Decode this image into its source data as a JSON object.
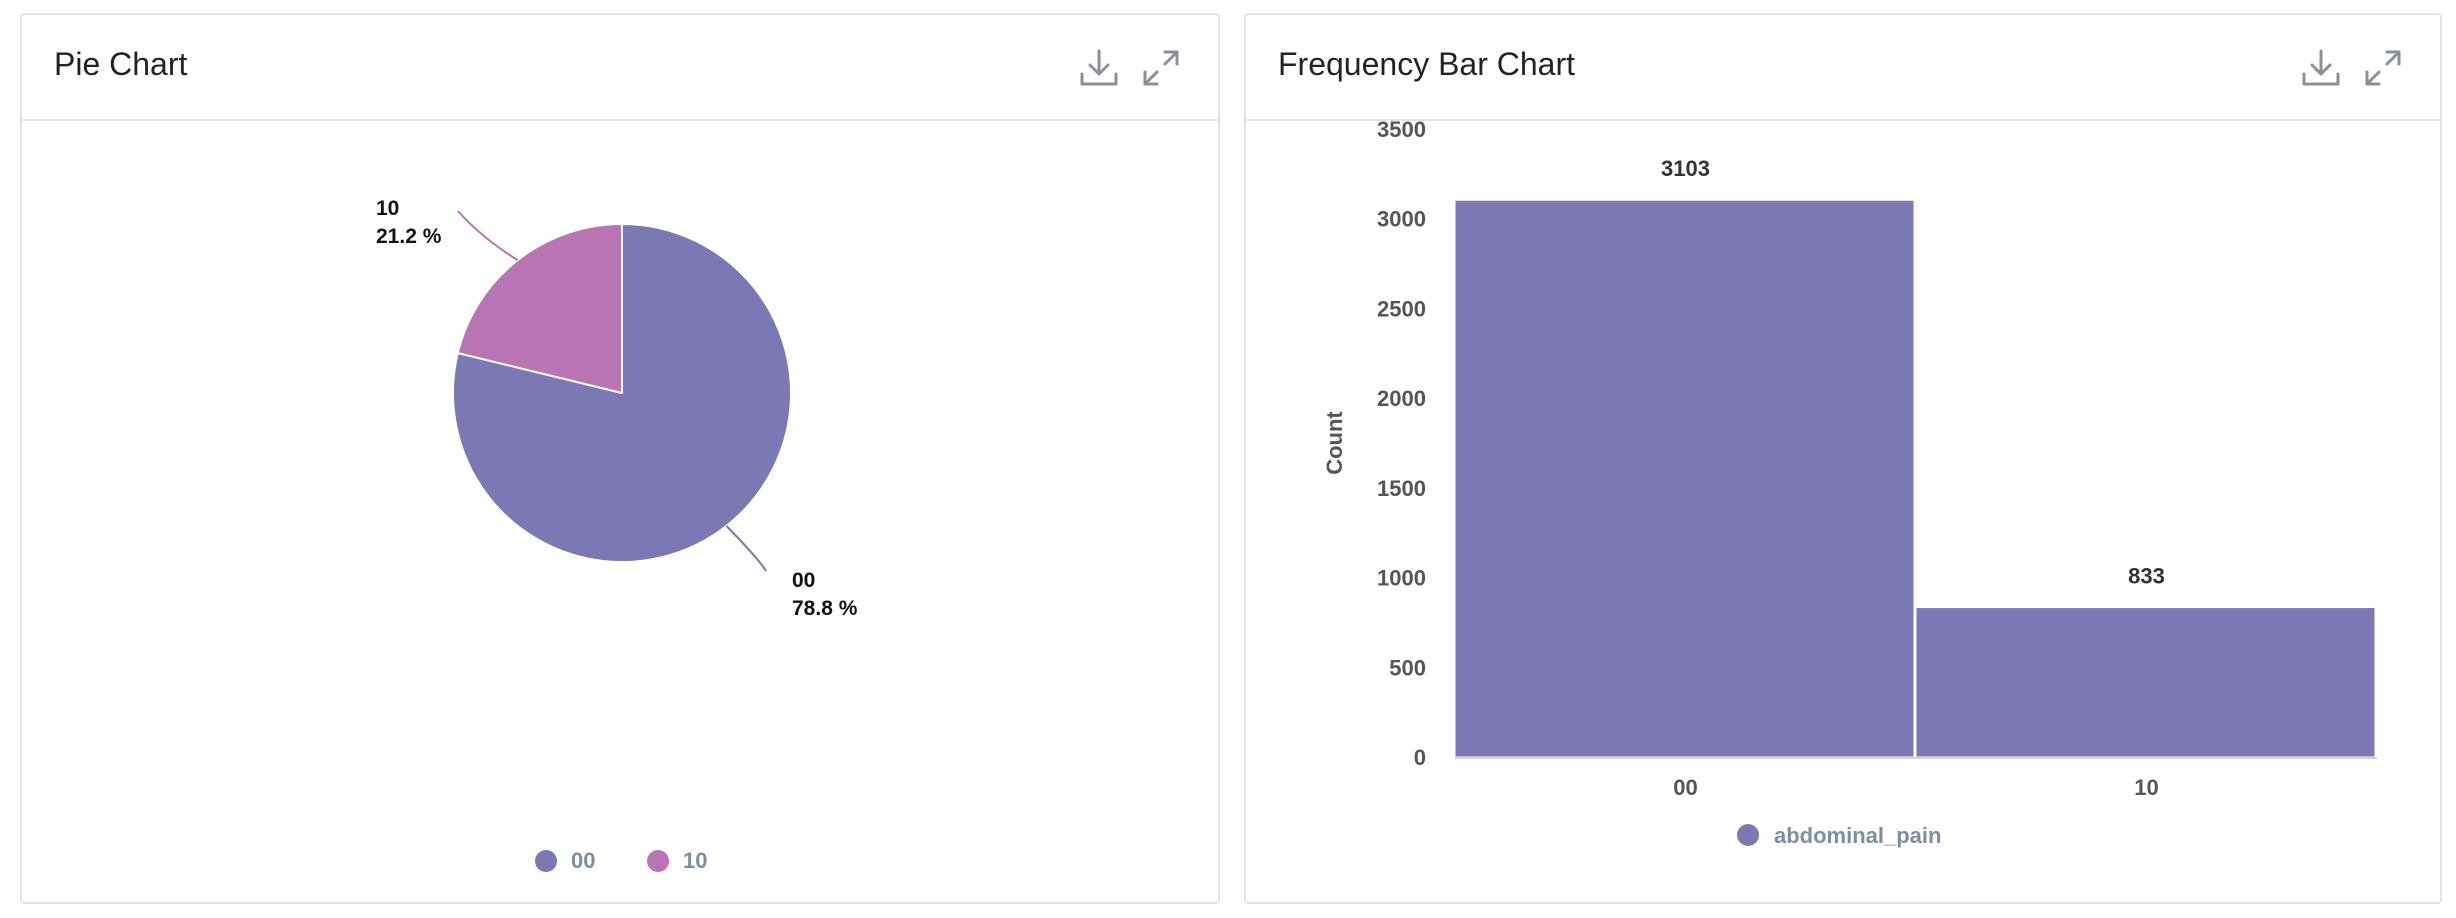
{
  "panels": {
    "pie": {
      "title": "Pie Chart",
      "download_icon": "download-icon",
      "expand_icon": "expand-icon"
    },
    "bar": {
      "title": "Frequency Bar Chart",
      "download_icon": "download-icon",
      "expand_icon": "expand-icon"
    }
  },
  "colors": {
    "series_00": "#7b78b4",
    "series_10": "#b874b3",
    "legend_text": "#7a8fa3",
    "axis_text": "#555555",
    "icon": "#8a9099"
  },
  "chart_data": [
    {
      "type": "pie",
      "title": "Pie Chart",
      "slices": [
        {
          "label": "00",
          "percent": 78.8,
          "percent_label": "78.8 %",
          "color": "#7b78b4"
        },
        {
          "label": "10",
          "percent": 21.2,
          "percent_label": "21.2 %",
          "color": "#b874b3"
        }
      ],
      "legend": [
        "00",
        "10"
      ],
      "legend_position": "bottom"
    },
    {
      "type": "bar",
      "title": "Frequency Bar Chart",
      "categories": [
        "00",
        "10"
      ],
      "series": [
        {
          "name": "abdominal_pain",
          "values": [
            3103,
            833
          ],
          "color": "#7b78b4"
        }
      ],
      "value_labels": [
        "3103",
        "833"
      ],
      "xlabel": "",
      "ylabel": "Count",
      "ylim": [
        0,
        3500
      ],
      "yticks": [
        0,
        500,
        1000,
        1500,
        2000,
        2500,
        3000,
        3500
      ],
      "ytick_labels": [
        "0",
        "500",
        "1000",
        "1500",
        "2000",
        "2500",
        "3000",
        "3500"
      ],
      "legend_position": "bottom",
      "grid": false
    }
  ]
}
